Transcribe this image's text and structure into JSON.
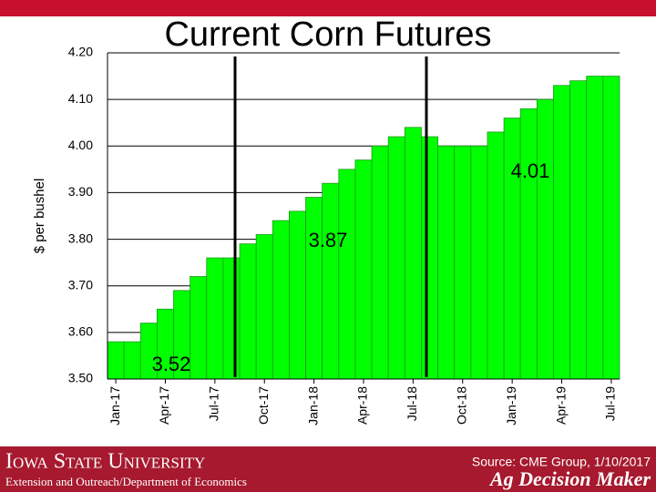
{
  "chart_data": {
    "type": "step-area",
    "title": "Current Corn Futures",
    "y_label": "$ per bushel",
    "categories": [
      "Jan-17",
      null,
      null,
      "Apr-17",
      null,
      null,
      "Jul-17",
      null,
      null,
      "Oct-17",
      null,
      null,
      "Jan-18",
      null,
      null,
      "Apr-18",
      null,
      null,
      "Jul-18",
      null,
      null,
      "Oct-18",
      null,
      null,
      "Jan-19",
      null,
      null,
      "Apr-19",
      null,
      null,
      "Jul-19"
    ],
    "values": [
      3.58,
      3.58,
      3.62,
      3.65,
      3.69,
      3.72,
      3.76,
      3.76,
      3.79,
      3.81,
      3.84,
      3.86,
      3.89,
      3.92,
      3.95,
      3.97,
      4.0,
      4.02,
      4.04,
      4.02,
      4.0,
      4.0,
      4.0,
      4.03,
      4.06,
      4.08,
      4.1,
      4.13,
      4.14,
      4.15,
      4.15
    ],
    "color": "#00ff00",
    "ylim": [
      3.5,
      4.2
    ],
    "yticks": [
      {
        "value": 3.5,
        "label": "3.50"
      },
      {
        "value": 3.6,
        "label": "3.60"
      },
      {
        "value": 3.7,
        "label": "3.70"
      },
      {
        "value": 3.8,
        "label": "3.80"
      },
      {
        "value": 3.9,
        "label": "3.90"
      },
      {
        "value": 4.0,
        "label": "4.00"
      },
      {
        "value": 4.1,
        "label": "4.10"
      },
      {
        "value": 4.2,
        "label": "4.20"
      }
    ],
    "grid": true,
    "annotations": [
      "3.52",
      "3.87",
      "4.01"
    ]
  },
  "footer": {
    "university": "Iowa State University",
    "department": "Extension and Outreach/Department of Economics",
    "source": "Source: CME Group, 1/10/2017",
    "brand": "Ag Decision Maker"
  }
}
